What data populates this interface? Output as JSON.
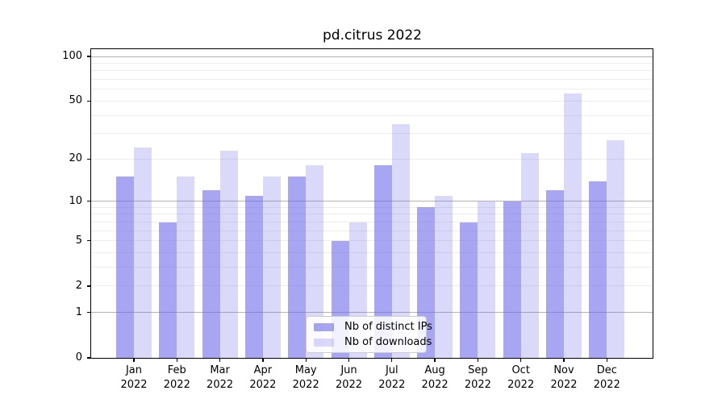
{
  "title": "pd.citrus 2022",
  "chart_data": {
    "type": "bar",
    "title": "pd.citrus 2022",
    "categories": [
      "Jan",
      "Feb",
      "Mar",
      "Apr",
      "May",
      "Jun",
      "Jul",
      "Aug",
      "Sep",
      "Oct",
      "Nov",
      "Dec"
    ],
    "x_year": "2022",
    "series": [
      {
        "name": "Nb of distinct IPs",
        "color": "rgba(110,105,235,0.6)",
        "solid_hex": "#a8a5f3",
        "values": [
          15,
          7,
          12,
          11,
          15,
          5,
          18,
          9,
          7,
          10,
          12,
          14
        ]
      },
      {
        "name": "Nb of downloads",
        "color": "rgba(110,105,235,0.25)",
        "solid_hex": "#d9d7fa",
        "values": [
          24,
          15,
          23,
          15,
          18,
          7,
          35,
          11,
          10,
          22,
          56,
          27
        ]
      }
    ],
    "y_scale": "log1p",
    "ylim": [
      0,
      112
    ],
    "y_tick_labels": [
      0,
      1,
      2,
      5,
      10,
      20,
      50,
      100
    ],
    "y_major_gridlines": [
      1,
      10,
      100
    ],
    "y_minor_gridlines": [
      2,
      3,
      4,
      5,
      6,
      7,
      8,
      9,
      20,
      30,
      40,
      50,
      60,
      70,
      80,
      90
    ],
    "grid": {
      "major_color": "#b2b2b2",
      "minor_color": "#ededed"
    },
    "legend": {
      "position": "lower center",
      "border_color": "#cccccc"
    },
    "axis_color": "#000000"
  }
}
